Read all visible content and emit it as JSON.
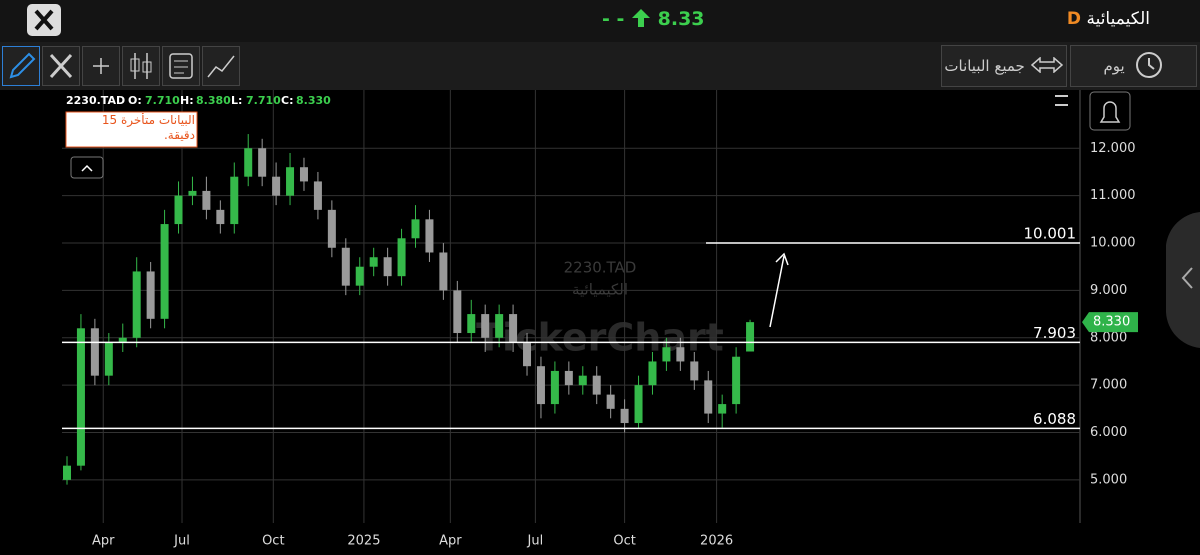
{
  "header": {
    "title": "الكيميائية",
    "badge": "D",
    "dashes": "- -",
    "price": "8.33"
  },
  "toolbar": {
    "all_data": "جميع البيانات",
    "period": "يوم"
  },
  "notice": "البيانات متأخرة 15 دقيقة.",
  "watermark": {
    "symbol": "2230.TAD",
    "name": "الكيميائية",
    "brand": "TickerChart"
  },
  "legend": {
    "symbol": "2230.TAD",
    "items": [
      {
        "key": "O:",
        "value": "7.710"
      },
      {
        "key": "H:",
        "value": "8.380"
      },
      {
        "key": "L:",
        "value": "7.710"
      },
      {
        "key": "C:",
        "value": "8.330"
      }
    ]
  },
  "chart_data": {
    "type": "candlestick",
    "open": [
      5.0,
      5.3,
      8.2,
      7.2,
      7.9,
      8.0,
      9.4,
      8.4,
      10.4,
      11.0,
      11.1,
      10.7,
      10.4,
      11.4,
      12.0,
      11.4,
      11.0,
      11.6,
      11.3,
      10.7,
      9.9,
      9.1,
      9.5,
      9.7,
      9.3,
      10.1,
      10.5,
      9.8,
      9.0,
      8.1,
      8.5,
      8.0,
      8.5,
      7.9,
      7.4,
      6.6,
      7.3,
      7.0,
      7.2,
      6.8,
      6.5,
      6.2,
      7.0,
      7.5,
      7.8,
      7.5,
      7.1,
      6.4,
      6.6,
      7.71
    ],
    "high": [
      5.5,
      8.5,
      8.4,
      8.1,
      8.3,
      9.7,
      9.6,
      10.7,
      11.3,
      11.4,
      11.4,
      10.9,
      11.7,
      12.3,
      12.2,
      11.7,
      11.9,
      11.8,
      11.5,
      10.9,
      10.1,
      9.7,
      9.9,
      9.9,
      10.3,
      10.8,
      10.7,
      10.0,
      9.2,
      8.8,
      8.7,
      8.7,
      8.7,
      8.1,
      7.6,
      7.5,
      7.5,
      7.4,
      7.4,
      7.0,
      6.7,
      7.2,
      7.7,
      8.0,
      8.0,
      7.7,
      7.3,
      6.8,
      7.8,
      8.38
    ],
    "low": [
      4.9,
      5.2,
      7.0,
      7.0,
      7.7,
      7.8,
      8.2,
      8.2,
      10.2,
      10.8,
      10.5,
      10.2,
      10.2,
      11.2,
      11.2,
      10.8,
      10.8,
      11.1,
      10.5,
      9.7,
      8.9,
      8.9,
      9.3,
      9.1,
      9.1,
      9.9,
      9.6,
      8.8,
      7.9,
      7.9,
      7.7,
      7.8,
      7.7,
      7.2,
      6.3,
      6.4,
      6.8,
      6.8,
      6.6,
      6.3,
      6.0,
      6.1,
      6.8,
      7.3,
      7.3,
      6.9,
      6.2,
      6.1,
      6.4,
      7.71
    ],
    "close": [
      5.3,
      8.2,
      7.2,
      7.9,
      8.0,
      9.4,
      8.4,
      10.4,
      11.0,
      11.1,
      10.7,
      10.4,
      11.4,
      12.0,
      11.4,
      11.0,
      11.6,
      11.3,
      10.7,
      9.9,
      9.1,
      9.5,
      9.7,
      9.3,
      10.1,
      10.5,
      9.8,
      9.0,
      8.1,
      8.5,
      8.0,
      8.5,
      7.9,
      7.4,
      6.6,
      7.3,
      7.0,
      7.2,
      6.8,
      6.5,
      6.2,
      7.0,
      7.5,
      7.8,
      7.5,
      7.1,
      6.4,
      6.6,
      7.6,
      8.33
    ],
    "up_color": "#35b94a",
    "down_color": "#9a9a9a",
    "xticks": [
      {
        "value": 2.6,
        "label": "Apr"
      },
      {
        "value": 8.25,
        "label": "Jul"
      },
      {
        "value": 14.8,
        "label": "Oct"
      },
      {
        "value": 21.3,
        "label": "2025"
      },
      {
        "value": 27.5,
        "label": "Apr"
      },
      {
        "value": 33.6,
        "label": "Jul"
      },
      {
        "value": 40.0,
        "label": "Oct"
      },
      {
        "value": 46.6,
        "label": "2026"
      }
    ],
    "ylim": [
      4.09,
      13.23
    ],
    "yticks": [
      {
        "value": 5,
        "label": "5.000"
      },
      {
        "value": 6,
        "label": "6.000"
      },
      {
        "value": 7,
        "label": "7.000"
      },
      {
        "value": 8,
        "label": "8.000"
      },
      {
        "value": 9,
        "label": "9.000"
      },
      {
        "value": 10,
        "label": "10.000"
      },
      {
        "value": 11,
        "label": "11.000"
      },
      {
        "value": 12,
        "label": "12.000"
      }
    ],
    "levels": [
      10.001,
      7.903,
      6.088
    ],
    "last": {
      "value": 8.33,
      "label": "8.330"
    },
    "grid": true
  }
}
